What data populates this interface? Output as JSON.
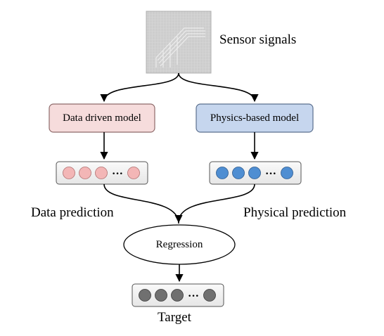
{
  "labels": {
    "sensor_signals": "Sensor signals",
    "data_model": "Data driven model",
    "physics_model": "Physics-based model",
    "data_prediction": "Data prediction",
    "physical_prediction": "Physical prediction",
    "regression": "Regression",
    "target": "Target",
    "ellipsis": "···"
  },
  "colors": {
    "data_model_fill": "#f6dcdc",
    "physics_model_fill": "#c6d6ee",
    "data_circle": "#f3b6b6",
    "physics_circle": "#4f8ed2",
    "target_circle": "#707070",
    "sensor_fill": "#c9c9c9"
  }
}
